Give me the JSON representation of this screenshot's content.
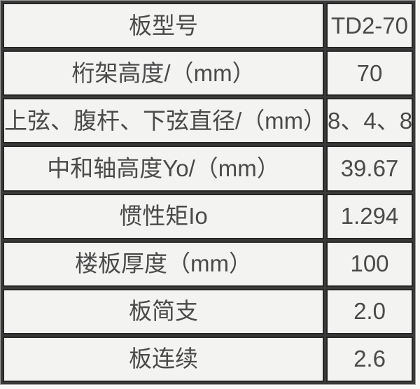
{
  "table": {
    "rows": [
      {
        "label": "板型号",
        "value": "TD2-70"
      },
      {
        "label": "桁架高度/（mm）",
        "value": "70"
      },
      {
        "label": "上弦、腹杆、下弦直径/（mm）",
        "value": "8、4、8"
      },
      {
        "label": "中和轴高度Yo/（mm）",
        "value": "39.67"
      },
      {
        "label": "惯性矩Io",
        "value": "1.294"
      },
      {
        "label": "楼板厚度（mm）",
        "value": "100"
      },
      {
        "label": "板简支",
        "value": "2.0"
      },
      {
        "label": "板连续",
        "value": "2.6"
      }
    ]
  },
  "colors": {
    "cell_background": "#f3f3f2",
    "cell_border": "#262626",
    "grid_gap": "#3a3a3a",
    "outer_edge": "#9a9a9a",
    "text": "#4a4a4a"
  }
}
